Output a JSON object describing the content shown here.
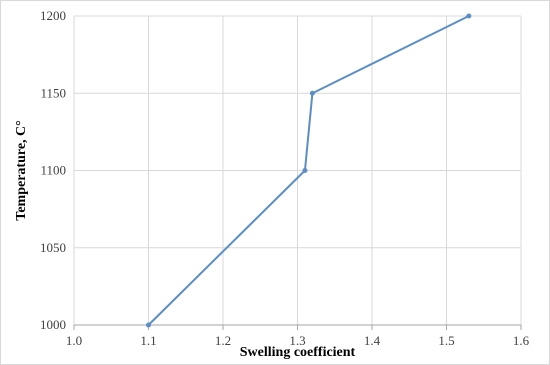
{
  "chart_data": {
    "type": "line",
    "title": "",
    "xlabel": "Swelling coefficient",
    "ylabel": "Temperature, C°",
    "xlim": [
      1.0,
      1.6
    ],
    "ylim": [
      1000,
      1200
    ],
    "x_ticks": [
      "1.0",
      "1.1",
      "1.2",
      "1.3",
      "1.4",
      "1.5",
      "1.6"
    ],
    "y_ticks": [
      "1000",
      "1050",
      "1100",
      "1150",
      "1200"
    ],
    "grid": true,
    "legend": "none",
    "series": [
      {
        "color": "#5b8ec7",
        "points": [
          {
            "x": 1.1,
            "y": 1000
          },
          {
            "x": 1.31,
            "y": 1100
          },
          {
            "x": 1.32,
            "y": 1150
          },
          {
            "x": 1.53,
            "y": 1200
          }
        ]
      }
    ]
  }
}
